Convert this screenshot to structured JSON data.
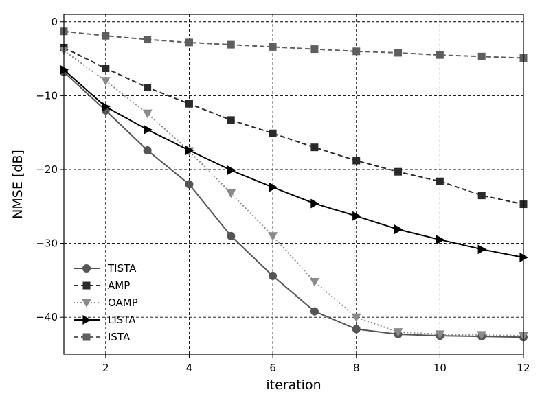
{
  "chart_data": {
    "type": "line",
    "title": "",
    "xlabel": "iteration",
    "ylabel": "NMSE [dB]",
    "xlim": [
      1,
      12
    ],
    "ylim": [
      -45,
      1
    ],
    "xticks": [
      2,
      4,
      6,
      8,
      10,
      12
    ],
    "yticks": [
      0,
      -10,
      -20,
      -30,
      -40
    ],
    "grid": true,
    "legend_position": "lower-left",
    "x": [
      1,
      2,
      3,
      4,
      5,
      6,
      7,
      8,
      9,
      10,
      11,
      12
    ],
    "series": [
      {
        "name": "TISTA",
        "marker": "circle",
        "line_style": "solid",
        "color": "#555555",
        "values": [
          -6.8,
          -12.0,
          -17.4,
          -22.0,
          -29.0,
          -34.4,
          -39.2,
          -41.6,
          -42.3,
          -42.5,
          -42.6,
          -42.7
        ]
      },
      {
        "name": "AMP",
        "marker": "square",
        "line_style": "dashed",
        "color": "#2a2a2a",
        "values": [
          -3.5,
          -6.3,
          -8.9,
          -11.1,
          -13.3,
          -15.1,
          -17.0,
          -18.8,
          -20.3,
          -21.6,
          -23.5,
          -24.7
        ]
      },
      {
        "name": "OAMP",
        "marker": "triangle-down",
        "line_style": "dotted",
        "color": "#8a8a8a",
        "values": [
          -3.9,
          -8.0,
          -12.4,
          -17.5,
          -23.2,
          -29.0,
          -35.2,
          -40.0,
          -42.0,
          -42.3,
          -42.4,
          -42.5
        ]
      },
      {
        "name": "LISTA",
        "marker": "triangle-right",
        "line_style": "solid",
        "color": "#000000",
        "values": [
          -6.5,
          -11.5,
          -14.6,
          -17.4,
          -20.1,
          -22.4,
          -24.6,
          -26.3,
          -28.1,
          -29.5,
          -30.8,
          -31.9
        ]
      },
      {
        "name": "ISTA",
        "marker": "square",
        "line_style": "dashed",
        "color": "#5e5e5e",
        "values": [
          -1.3,
          -1.9,
          -2.4,
          -2.8,
          -3.1,
          -3.4,
          -3.7,
          -4.0,
          -4.2,
          -4.5,
          -4.7,
          -4.9
        ]
      }
    ]
  }
}
